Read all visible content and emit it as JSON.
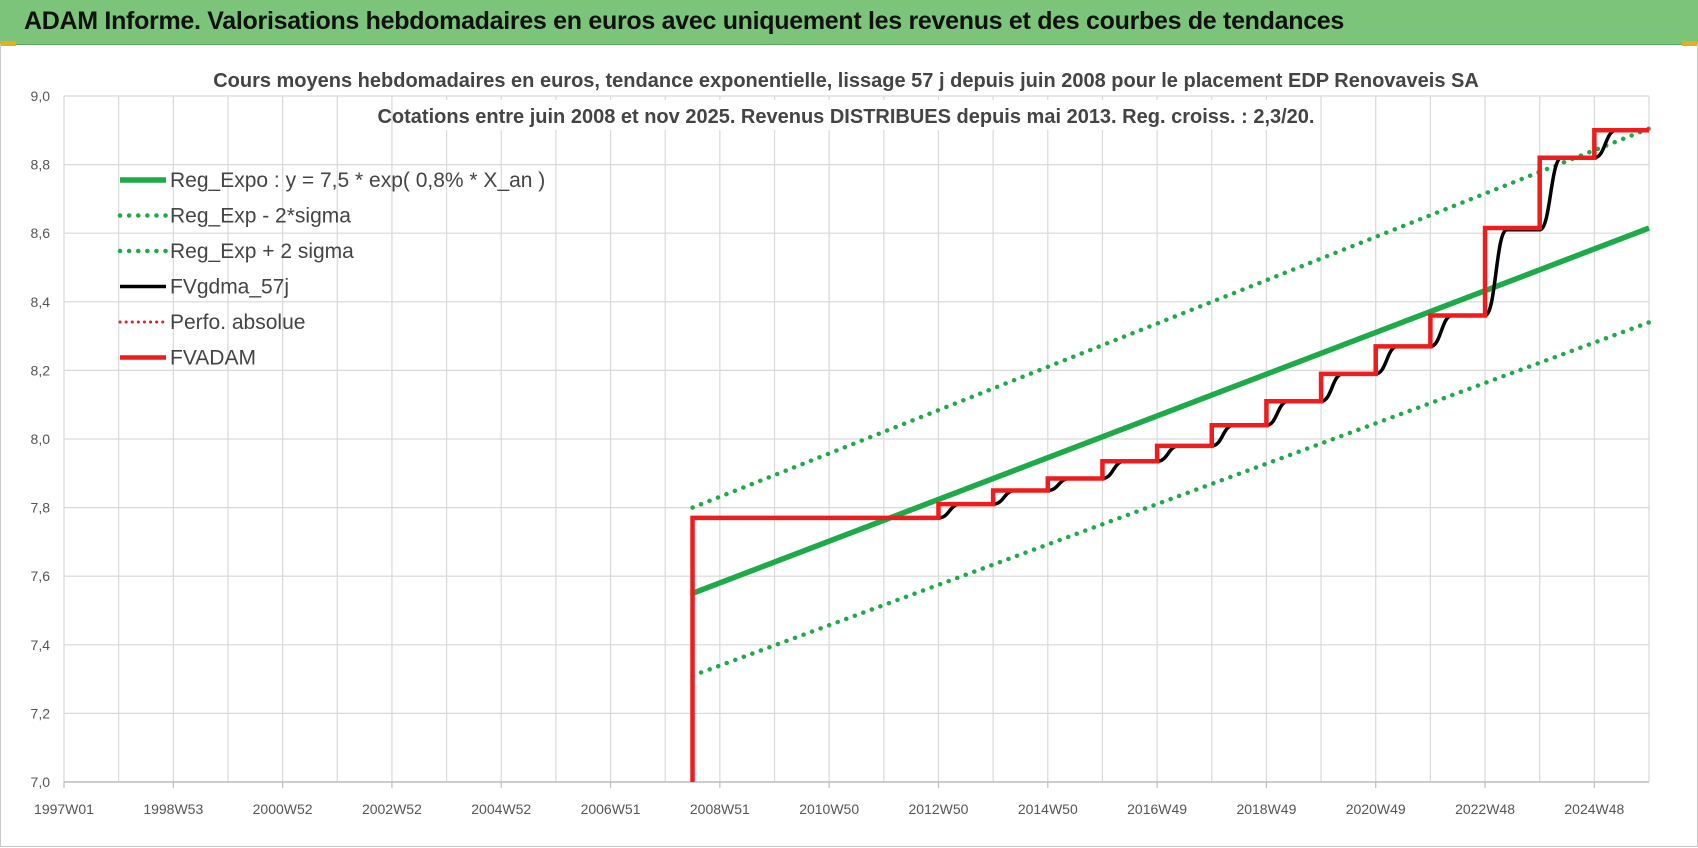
{
  "banner": {
    "title": "ADAM Informe. Valorisations hebdomadaires en euros avec uniquement les revenus et des courbes de tendances"
  },
  "chart_data": {
    "type": "line",
    "title_line1": "Cours moyens hebdomadaires en euros, tendance exponentielle, lissage 57 j depuis juin 2008 pour le placement EDP Renovaveis SA",
    "title_line2": "Cotations entre juin 2008 et nov 2025. Revenus DISTRIBUES depuis mai 2013. Reg. croiss. : 2,3/20.",
    "xlabel": "",
    "ylabel": "",
    "x_tick_labels": [
      "1997W01",
      "1998W53",
      "2000W52",
      "2002W52",
      "2004W52",
      "2006W51",
      "2008W51",
      "2010W50",
      "2012W50",
      "2014W50",
      "2016W49",
      "2018W49",
      "2020W49",
      "2022W48",
      "2024W48"
    ],
    "x_tick_years": [
      1997.0,
      1999.0,
      2001.0,
      2003.0,
      2005.0,
      2007.0,
      2009.0,
      2011.0,
      2013.0,
      2015.0,
      2017.0,
      2019.0,
      2021.0,
      2023.0,
      2025.0
    ],
    "xlim": [
      1997.0,
      2026.0
    ],
    "ylim": [
      7.0,
      9.0
    ],
    "y_ticks": [
      7.0,
      7.2,
      7.4,
      7.6,
      7.8,
      8.0,
      8.2,
      8.4,
      8.6,
      8.8,
      9.0
    ],
    "y_tick_labels": [
      "7,0",
      "7,2",
      "7,4",
      "7,6",
      "7,8",
      "8,0",
      "8,2",
      "8,4",
      "8,6",
      "8,8",
      "9,0"
    ],
    "grid": true,
    "legend_position": "top-left",
    "colors": {
      "reg_expo": "#1faa4a",
      "fvgdma": "#000000",
      "perfo": "#e02020",
      "fvadam": "#ee1c1c",
      "grid": "#d9d9d9"
    },
    "series": [
      {
        "name": "Reg_Expo : y = 7,5 * exp( 0,8% *  X_an )",
        "style": "solid",
        "x": [
          2008.5,
          2026.0
        ],
        "y": [
          7.55,
          8.615
        ]
      },
      {
        "name": "Reg_Exp - 2*sigma",
        "style": "dotted",
        "x": [
          2008.5,
          2026.0
        ],
        "y": [
          7.31,
          8.34
        ]
      },
      {
        "name": "Reg_Exp + 2 sigma",
        "style": "dotted",
        "x": [
          2008.5,
          2026.0
        ],
        "y": [
          7.8,
          8.905
        ]
      },
      {
        "name": "FVgdma_57j",
        "style": "solid",
        "x": [
          2008.5,
          2013.0,
          2013.4,
          2014.0,
          2014.4,
          2015.0,
          2015.4,
          2016.0,
          2016.4,
          2017.0,
          2017.4,
          2018.0,
          2018.4,
          2019.0,
          2019.4,
          2020.0,
          2020.4,
          2021.0,
          2021.4,
          2022.0,
          2022.4,
          2023.0,
          2023.4,
          2024.0,
          2024.4,
          2025.0,
          2025.4,
          2026.0
        ],
        "y": [
          7.77,
          7.77,
          7.81,
          7.81,
          7.85,
          7.85,
          7.885,
          7.885,
          7.935,
          7.935,
          7.98,
          7.98,
          8.04,
          8.04,
          8.11,
          8.11,
          8.19,
          8.19,
          8.27,
          8.27,
          8.36,
          8.36,
          8.61,
          8.61,
          8.82,
          8.82,
          8.9,
          8.9
        ]
      },
      {
        "name": "Perfo. absolue",
        "style": "dotted",
        "x": [],
        "y": []
      },
      {
        "name": "FVADAM",
        "style": "solid",
        "x": [
          2008.5,
          2008.5,
          2013.0,
          2013.0,
          2014.0,
          2014.0,
          2015.0,
          2015.0,
          2016.0,
          2016.0,
          2017.0,
          2017.0,
          2018.0,
          2018.0,
          2019.0,
          2019.0,
          2020.0,
          2020.0,
          2021.0,
          2021.0,
          2022.0,
          2022.0,
          2023.0,
          2023.0,
          2024.0,
          2024.0,
          2025.0,
          2025.0,
          2026.0
        ],
        "y": [
          7.0,
          7.77,
          7.77,
          7.81,
          7.81,
          7.85,
          7.85,
          7.885,
          7.885,
          7.935,
          7.935,
          7.98,
          7.98,
          8.04,
          8.04,
          8.11,
          8.11,
          8.19,
          8.19,
          8.27,
          8.27,
          8.36,
          8.36,
          8.615,
          8.615,
          8.82,
          8.82,
          8.9,
          8.9
        ]
      }
    ]
  }
}
